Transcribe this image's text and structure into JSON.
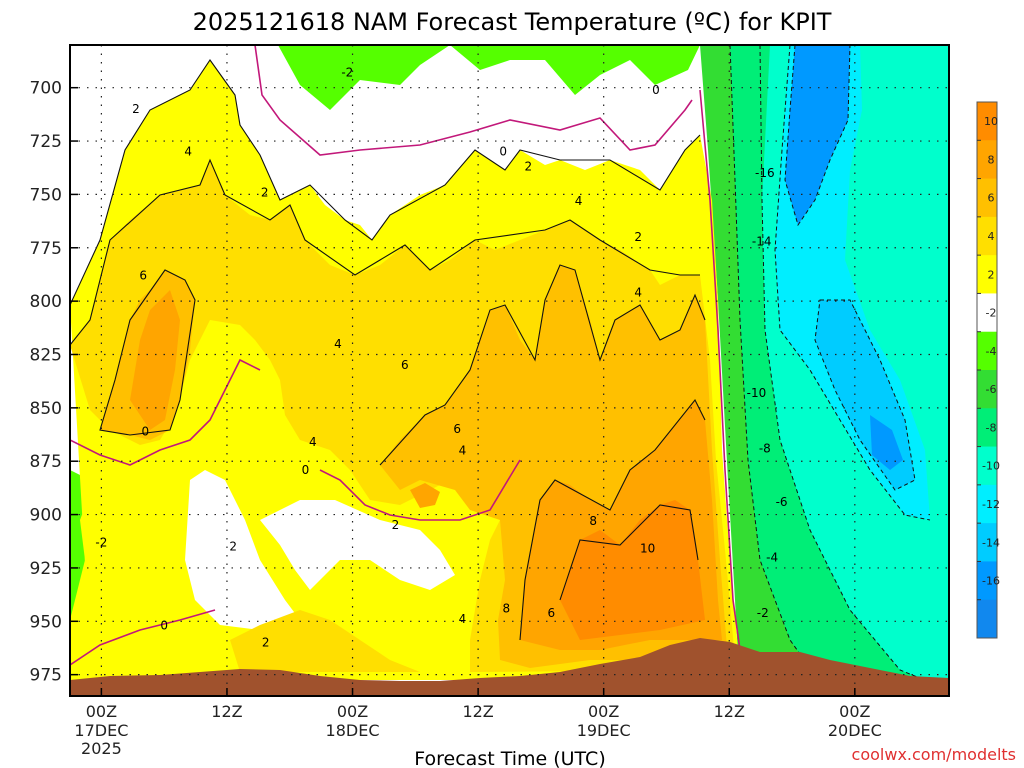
{
  "chart_data": {
    "type": "heatmap",
    "title": "2025121618 NAM Forecast Temperature (ºC) for KPIT",
    "xlabel": "Forecast Time (UTC)",
    "ylabel": "",
    "credit": "coolwx.com/modelts",
    "y_ticks": [
      "700",
      "725",
      "750",
      "775",
      "800",
      "825",
      "850",
      "875",
      "900",
      "925",
      "950",
      "975"
    ],
    "y_values": [
      700,
      725,
      750,
      775,
      800,
      825,
      850,
      875,
      900,
      925,
      950,
      975
    ],
    "ylim": [
      680,
      985
    ],
    "xlim_hours": [
      -3,
      81
    ],
    "x_ticks": [
      {
        "hour": 0,
        "label": "00Z",
        "line2": "17DEC",
        "line3": "2025"
      },
      {
        "hour": 12,
        "label": "12Z",
        "line2": "",
        "line3": ""
      },
      {
        "hour": 24,
        "label": "00Z",
        "line2": "18DEC",
        "line3": ""
      },
      {
        "hour": 36,
        "label": "12Z",
        "line2": "",
        "line3": ""
      },
      {
        "hour": 48,
        "label": "00Z",
        "line2": "19DEC",
        "line3": ""
      },
      {
        "hour": 60,
        "label": "12Z",
        "line2": "",
        "line3": ""
      },
      {
        "hour": 72,
        "label": "00Z",
        "line2": "20DEC",
        "line3": ""
      }
    ],
    "colorbar": {
      "labels": [
        "10",
        "8",
        "6",
        "4",
        "2",
        "-2",
        "-4",
        "-6",
        "-8",
        "-10",
        "-12",
        "-14",
        "-16"
      ],
      "colors": [
        "#ff8c00",
        "#ffa500",
        "#ffc000",
        "#ffdf00",
        "#ffff00",
        "#ffffff",
        "#55ff00",
        "#33dd33",
        "#00ee77",
        "#00ffcc",
        "#00eeff",
        "#00ccff",
        "#0099ff",
        "#1188ee"
      ]
    },
    "series": [
      {
        "name": "-16 contour",
        "hour": 63.4,
        "pressure": 740,
        "label": "-16"
      },
      {
        "name": "-14 contour",
        "hour": 63.1,
        "pressure": 772,
        "label": "-14"
      },
      {
        "name": "-10 contour",
        "hour": 62.6,
        "pressure": 843,
        "label": "-10"
      },
      {
        "name": "-8 contour",
        "hour": 63.4,
        "pressure": 869,
        "label": "-8"
      },
      {
        "name": "-6 contour",
        "hour": 65.0,
        "pressure": 894,
        "label": "-6"
      },
      {
        "name": "-4 contour",
        "hour": 64.1,
        "pressure": 920,
        "label": "-4"
      },
      {
        "name": "-2 near surface east",
        "hour": 63.2,
        "pressure": 946,
        "label": "-2"
      },
      {
        "name": "-2 upper",
        "hour": 23.5,
        "pressure": 693,
        "label": "-2"
      },
      {
        "name": "-2 lower west",
        "hour": 0.0,
        "pressure": 913,
        "label": "-2"
      },
      {
        "name": "0 upper",
        "hour": 38.4,
        "pressure": 730,
        "label": "0"
      },
      {
        "name": "0 top right",
        "hour": 53.0,
        "pressure": 701,
        "label": "0"
      },
      {
        "name": "0 west",
        "hour": 4.2,
        "pressure": 861,
        "label": "0"
      },
      {
        "name": "0 middle",
        "hour": 19.5,
        "pressure": 879,
        "label": "0"
      },
      {
        "name": "0 surface",
        "hour": 6.0,
        "pressure": 952,
        "label": "0"
      },
      {
        "name": "2 contour",
        "hour": 3.3,
        "pressure": 710,
        "label": "2"
      },
      {
        "name": "2 contour",
        "hour": 15.6,
        "pressure": 749,
        "label": "2"
      },
      {
        "name": "2 contour",
        "hour": 40.8,
        "pressure": 737,
        "label": "2"
      },
      {
        "name": "2 contour",
        "hour": 51.3,
        "pressure": 770,
        "label": "2"
      },
      {
        "name": "2 contour",
        "hour": 28.1,
        "pressure": 905,
        "label": "2"
      },
      {
        "name": "2 contour",
        "hour": 12.6,
        "pressure": 915,
        "label": "2"
      },
      {
        "name": "2 contour",
        "hour": 15.7,
        "pressure": 960,
        "label": "2"
      },
      {
        "name": "4 contour",
        "hour": 8.3,
        "pressure": 730,
        "label": "4"
      },
      {
        "name": "4 contour",
        "hour": 45.6,
        "pressure": 753,
        "label": "4"
      },
      {
        "name": "4 contour",
        "hour": 51.3,
        "pressure": 796,
        "label": "4"
      },
      {
        "name": "4 contour",
        "hour": 22.6,
        "pressure": 820,
        "label": "4"
      },
      {
        "name": "4 contour",
        "hour": 20.2,
        "pressure": 866,
        "label": "4"
      },
      {
        "name": "4 contour",
        "hour": 34.5,
        "pressure": 870,
        "label": "4"
      },
      {
        "name": "4 contour",
        "hour": 34.5,
        "pressure": 949,
        "label": "4"
      },
      {
        "name": "6 contour",
        "hour": 4.0,
        "pressure": 788,
        "label": "6"
      },
      {
        "name": "6 contour",
        "hour": 29.0,
        "pressure": 830,
        "label": "6"
      },
      {
        "name": "6 contour",
        "hour": 34.0,
        "pressure": 860,
        "label": "6"
      },
      {
        "name": "6 contour",
        "hour": 43.0,
        "pressure": 946,
        "label": "6"
      },
      {
        "name": "8 contour",
        "hour": 47.0,
        "pressure": 903,
        "label": "8"
      },
      {
        "name": "8 contour",
        "hour": 38.7,
        "pressure": 944,
        "label": "8"
      },
      {
        "name": "10 contour",
        "hour": 52.2,
        "pressure": 916,
        "label": "10"
      }
    ],
    "terrain_surface": {
      "name": "surface (terrain)",
      "color": "#a0522d"
    }
  }
}
